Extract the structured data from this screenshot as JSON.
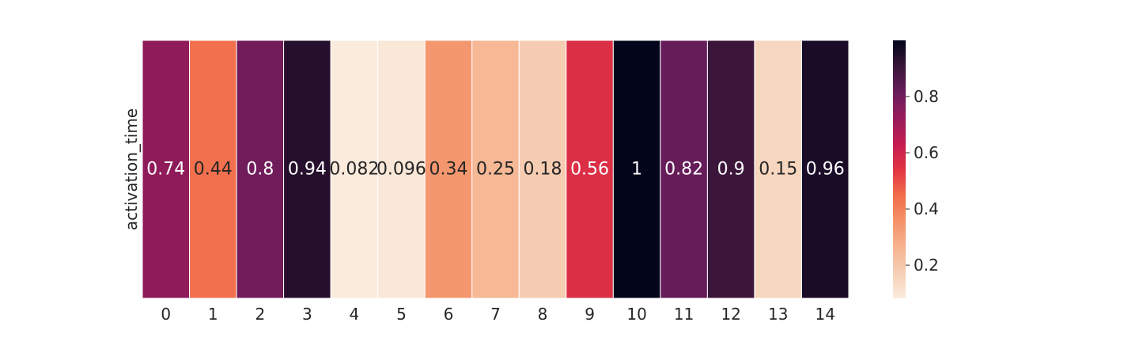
{
  "chart_data": {
    "type": "heatmap",
    "title": "",
    "xlabel": "",
    "ylabel": "",
    "rows": [
      "activation_time"
    ],
    "columns": [
      "0",
      "1",
      "2",
      "3",
      "4",
      "5",
      "6",
      "7",
      "8",
      "9",
      "10",
      "11",
      "12",
      "13",
      "14"
    ],
    "values": [
      [
        0.74,
        0.44,
        0.8,
        0.94,
        0.082,
        0.096,
        0.34,
        0.25,
        0.18,
        0.56,
        1,
        0.82,
        0.9,
        0.15,
        0.96
      ]
    ],
    "annotations": [
      "0.74",
      "0.44",
      "0.8",
      "0.94",
      "0.082",
      "0.096",
      "0.34",
      "0.25",
      "0.18",
      "0.56",
      "1",
      "0.82",
      "0.9",
      "0.15",
      "0.96"
    ],
    "colormap": "rocket_r",
    "colorbar": {
      "ticks": [
        0.2,
        0.4,
        0.6,
        0.8
      ],
      "tick_labels": [
        "0.2",
        "0.4",
        "0.6",
        "0.8"
      ],
      "range": [
        0.082,
        1
      ]
    },
    "cell_border_color": "#ffffff"
  }
}
